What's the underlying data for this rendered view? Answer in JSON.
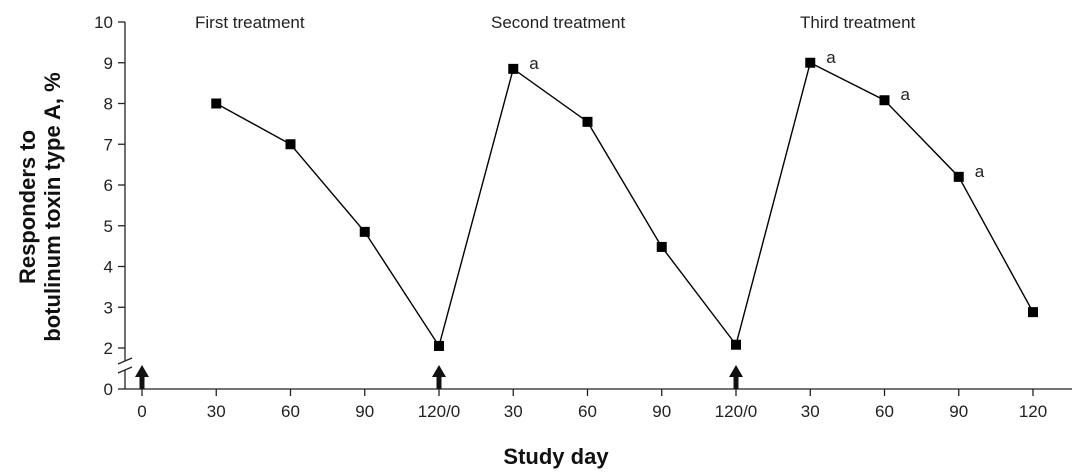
{
  "chart_data": {
    "type": "line",
    "xlabel": "Study day",
    "ylabel_line1": "Responders to",
    "ylabel_line2": "botulinum toxin type A, %",
    "ylim": [
      0,
      10
    ],
    "y_axis_break": "between 0 and 2",
    "y_ticks": [
      "0",
      "2",
      "3",
      "4",
      "5",
      "6",
      "7",
      "8",
      "9",
      "10"
    ],
    "x_tick_labels": [
      "0",
      "30",
      "60",
      "90",
      "120/0",
      "30",
      "60",
      "90",
      "120/0",
      "30",
      "60",
      "90",
      "120"
    ],
    "treatment_labels": [
      "First treatment",
      "Second treatment",
      "Third treatment"
    ],
    "injection_markers_at": [
      "0",
      "120/0",
      "120/0"
    ],
    "points": [
      {
        "x": "30",
        "y": 8.0,
        "annotation": ""
      },
      {
        "x": "60",
        "y": 7.0,
        "annotation": ""
      },
      {
        "x": "90",
        "y": 4.85,
        "annotation": ""
      },
      {
        "x": "120/0",
        "y": 2.05,
        "annotation": ""
      },
      {
        "x": "30",
        "y": 8.85,
        "annotation": "a"
      },
      {
        "x": "60",
        "y": 7.55,
        "annotation": ""
      },
      {
        "x": "90",
        "y": 4.48,
        "annotation": ""
      },
      {
        "x": "120/0",
        "y": 2.08,
        "annotation": ""
      },
      {
        "x": "30",
        "y": 9.0,
        "annotation": "a"
      },
      {
        "x": "60",
        "y": 8.08,
        "annotation": "a"
      },
      {
        "x": "90",
        "y": 6.2,
        "annotation": "a"
      },
      {
        "x": "120",
        "y": 2.88,
        "annotation": ""
      }
    ],
    "grid": false,
    "line_color": "#000000",
    "marker_color": "#000000",
    "arrow_color": "#111111"
  }
}
